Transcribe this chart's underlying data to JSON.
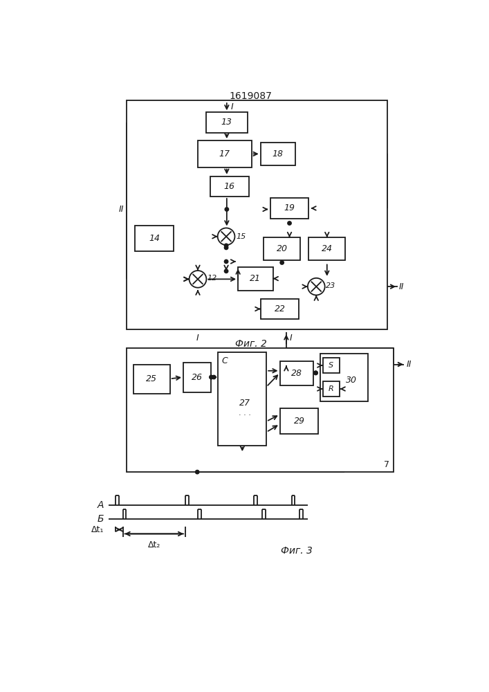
{
  "title": "1619087",
  "fig2_label": "Фиг. 2",
  "fig3_label": "Фиг. 3",
  "line_color": "#1a1a1a",
  "box_color": "#ffffff"
}
